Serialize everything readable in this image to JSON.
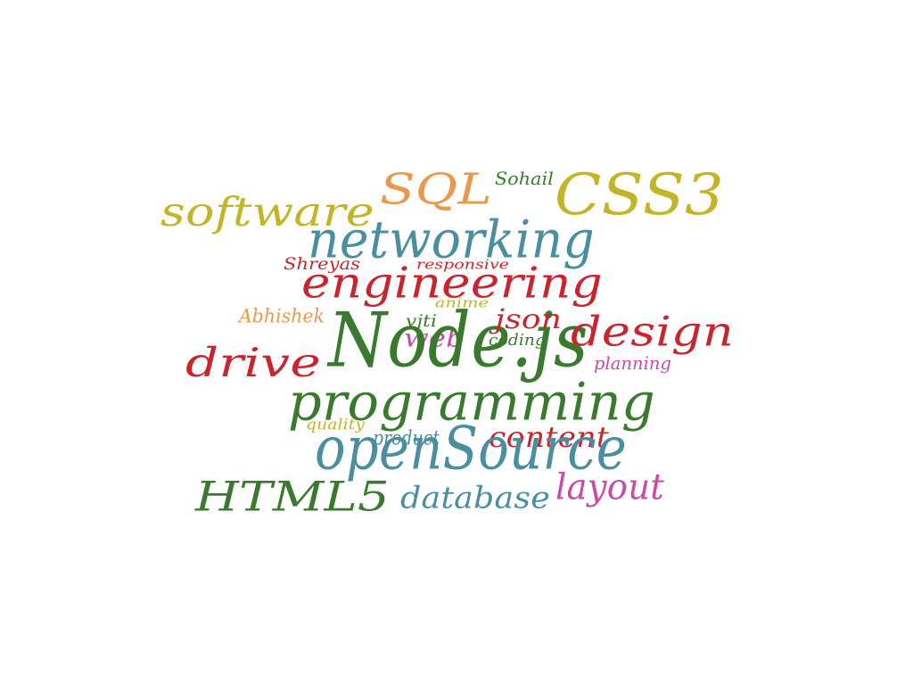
{
  "words": [
    {
      "text": "software",
      "color": "#c2b526"
    },
    {
      "text": "SQL",
      "color": "#e89a4a"
    },
    {
      "text": "Sohail",
      "color": "#3a7a2e"
    },
    {
      "text": "CSS3",
      "color": "#c2b526"
    },
    {
      "text": "networking",
      "color": "#4a8fa0"
    },
    {
      "text": "Shreyas",
      "color": "#c8252e"
    },
    {
      "text": "responsive",
      "color": "#c8252e"
    },
    {
      "text": "engineering",
      "color": "#c8252e"
    },
    {
      "text": "anime",
      "color": "#c2b526"
    },
    {
      "text": "Abhishek",
      "color": "#e89a4a"
    },
    {
      "text": "vjti",
      "color": "#3a7a2e"
    },
    {
      "text": "web",
      "color": "#c94ba8"
    },
    {
      "text": "Node.js",
      "color": "#3a7a2e"
    },
    {
      "text": "json",
      "color": "#c8252e"
    },
    {
      "text": "coding",
      "color": "#3a7a2e"
    },
    {
      "text": "design",
      "color": "#c8252e"
    },
    {
      "text": "drive",
      "color": "#c8252e"
    },
    {
      "text": "planning",
      "color": "#c94ba8"
    },
    {
      "text": "programming",
      "color": "#3a7a2e"
    },
    {
      "text": "quality",
      "color": "#c2b526"
    },
    {
      "text": "product",
      "color": "#4a8fa0"
    },
    {
      "text": "content",
      "color": "#c8252e"
    },
    {
      "text": "openSource",
      "color": "#4a8fa0"
    },
    {
      "text": "HTML5",
      "color": "#3a7a2e"
    },
    {
      "text": "database",
      "color": "#4a8fa0"
    },
    {
      "text": "layout",
      "color": "#c94ba8"
    }
  ]
}
